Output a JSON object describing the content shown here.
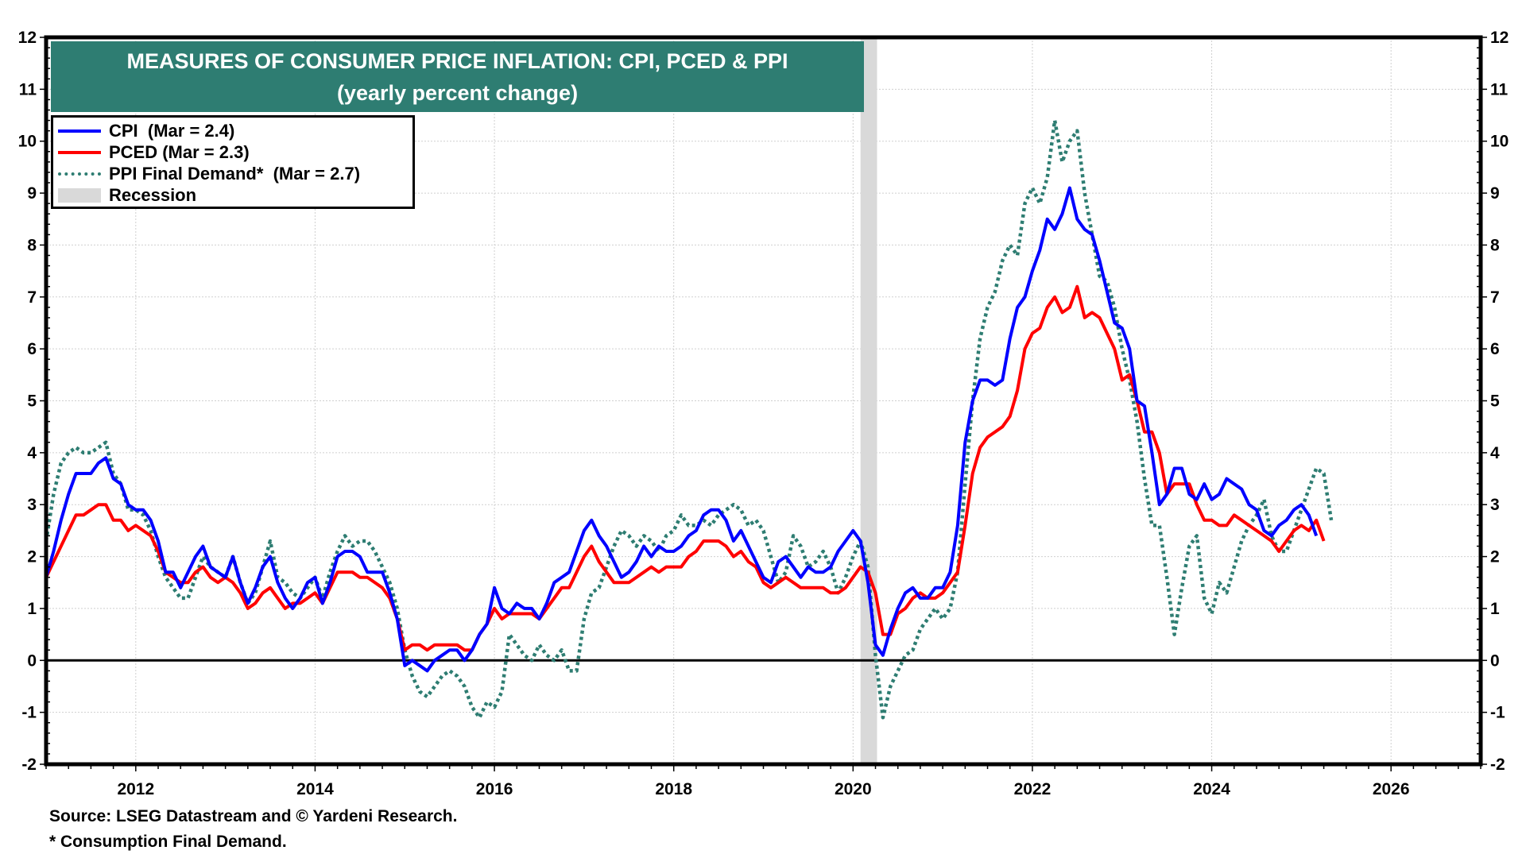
{
  "chart_data": {
    "type": "line",
    "title": "MEASURES OF CONSUMER PRICE INFLATION: CPI, PCED & PPI",
    "subtitle": "(yearly percent change)",
    "xlabel": "",
    "ylabel": "",
    "x_start": "2011-01",
    "x_frequency": "monthly",
    "xlim": [
      2011,
      2027
    ],
    "ylim": [
      -2,
      12
    ],
    "x_ticks": [
      "2012",
      "2014",
      "2016",
      "2018",
      "2020",
      "2022",
      "2024",
      "2026"
    ],
    "x_tick_values": [
      2012,
      2014,
      2016,
      2018,
      2020,
      2022,
      2024,
      2026
    ],
    "y_ticks": [
      "-2",
      "-1",
      "0",
      "1",
      "2",
      "3",
      "4",
      "5",
      "6",
      "7",
      "8",
      "9",
      "10",
      "11",
      "12"
    ],
    "y_tick_values": [
      -2,
      -1,
      0,
      1,
      2,
      3,
      4,
      5,
      6,
      7,
      8,
      9,
      10,
      11,
      12
    ],
    "grid": true,
    "legend_position": "top-left",
    "series": [
      {
        "name": "CPI",
        "legend": "CPI  (Mar = 2.4)",
        "color": "#0000ff",
        "style": "solid",
        "values": [
          1.6,
          2.1,
          2.7,
          3.2,
          3.6,
          3.6,
          3.6,
          3.8,
          3.9,
          3.5,
          3.4,
          3.0,
          2.9,
          2.9,
          2.7,
          2.3,
          1.7,
          1.7,
          1.4,
          1.7,
          2.0,
          2.2,
          1.8,
          1.7,
          1.6,
          2.0,
          1.5,
          1.1,
          1.4,
          1.8,
          2.0,
          1.5,
          1.2,
          1.0,
          1.2,
          1.5,
          1.6,
          1.1,
          1.5,
          2.0,
          2.1,
          2.1,
          2.0,
          1.7,
          1.7,
          1.7,
          1.3,
          0.8,
          -0.1,
          0.0,
          -0.1,
          -0.2,
          0.0,
          0.1,
          0.2,
          0.2,
          0.0,
          0.2,
          0.5,
          0.7,
          1.4,
          1.0,
          0.9,
          1.1,
          1.0,
          1.0,
          0.8,
          1.1,
          1.5,
          1.6,
          1.7,
          2.1,
          2.5,
          2.7,
          2.4,
          2.2,
          1.9,
          1.6,
          1.7,
          1.9,
          2.2,
          2.0,
          2.2,
          2.1,
          2.1,
          2.2,
          2.4,
          2.5,
          2.8,
          2.9,
          2.9,
          2.7,
          2.3,
          2.5,
          2.2,
          1.9,
          1.6,
          1.5,
          1.9,
          2.0,
          1.8,
          1.6,
          1.8,
          1.7,
          1.7,
          1.8,
          2.1,
          2.3,
          2.5,
          2.3,
          1.5,
          0.3,
          0.1,
          0.6,
          1.0,
          1.3,
          1.4,
          1.2,
          1.2,
          1.4,
          1.4,
          1.7,
          2.6,
          4.2,
          5.0,
          5.4,
          5.4,
          5.3,
          5.4,
          6.2,
          6.8,
          7.0,
          7.5,
          7.9,
          8.5,
          8.3,
          8.6,
          9.1,
          8.5,
          8.3,
          8.2,
          7.7,
          7.1,
          6.5,
          6.4,
          6.0,
          5.0,
          4.9,
          4.0,
          3.0,
          3.2,
          3.7,
          3.7,
          3.2,
          3.1,
          3.4,
          3.1,
          3.2,
          3.5,
          3.4,
          3.3,
          3.0,
          2.9,
          2.5,
          2.4,
          2.6,
          2.7,
          2.9,
          3.0,
          2.8,
          2.4
        ]
      },
      {
        "name": "PCED",
        "legend": "PCED (Mar = 2.3)",
        "color": "#ff0000",
        "style": "solid",
        "values": [
          1.6,
          1.9,
          2.2,
          2.5,
          2.8,
          2.8,
          2.9,
          3.0,
          3.0,
          2.7,
          2.7,
          2.5,
          2.6,
          2.5,
          2.4,
          2.1,
          1.7,
          1.6,
          1.5,
          1.5,
          1.7,
          1.8,
          1.6,
          1.5,
          1.6,
          1.5,
          1.3,
          1.0,
          1.1,
          1.3,
          1.4,
          1.2,
          1.0,
          1.1,
          1.1,
          1.2,
          1.3,
          1.1,
          1.4,
          1.7,
          1.7,
          1.7,
          1.6,
          1.6,
          1.5,
          1.4,
          1.2,
          0.8,
          0.2,
          0.3,
          0.3,
          0.2,
          0.3,
          0.3,
          0.3,
          0.3,
          0.2,
          0.2,
          0.5,
          0.7,
          1.0,
          0.8,
          0.9,
          0.9,
          0.9,
          0.9,
          0.8,
          1.0,
          1.2,
          1.4,
          1.4,
          1.7,
          2.0,
          2.2,
          1.9,
          1.7,
          1.5,
          1.5,
          1.5,
          1.6,
          1.7,
          1.8,
          1.7,
          1.8,
          1.8,
          1.8,
          2.0,
          2.1,
          2.3,
          2.3,
          2.3,
          2.2,
          2.0,
          2.1,
          1.9,
          1.8,
          1.5,
          1.4,
          1.5,
          1.6,
          1.5,
          1.4,
          1.4,
          1.4,
          1.4,
          1.3,
          1.3,
          1.4,
          1.6,
          1.8,
          1.7,
          1.3,
          0.5,
          0.5,
          0.9,
          1.0,
          1.2,
          1.3,
          1.2,
          1.2,
          1.3,
          1.5,
          1.7,
          2.6,
          3.6,
          4.1,
          4.3,
          4.4,
          4.5,
          4.7,
          5.2,
          6.0,
          6.3,
          6.4,
          6.8,
          7.0,
          6.7,
          6.8,
          7.2,
          6.6,
          6.7,
          6.6,
          6.3,
          6.0,
          5.4,
          5.5,
          5.0,
          4.4,
          4.4,
          4.0,
          3.2,
          3.4,
          3.4,
          3.4,
          3.0,
          2.7,
          2.7,
          2.6,
          2.6,
          2.8,
          2.7,
          2.6,
          2.5,
          2.4,
          2.3,
          2.1,
          2.3,
          2.5,
          2.6,
          2.5,
          2.7,
          2.3
        ]
      },
      {
        "name": "PPI Final Demand*",
        "legend": "PPI Final Demand*  (Mar = 2.7)",
        "color": "#2e7d72",
        "style": "dotted",
        "values": [
          2.3,
          3.2,
          3.8,
          4.0,
          4.1,
          4.0,
          4.0,
          4.1,
          4.2,
          3.6,
          3.4,
          2.9,
          2.9,
          2.8,
          2.5,
          2.0,
          1.6,
          1.4,
          1.2,
          1.2,
          1.6,
          2.0,
          1.8,
          1.7,
          1.6,
          2.0,
          1.5,
          1.1,
          1.3,
          1.8,
          2.3,
          1.6,
          1.5,
          1.3,
          1.2,
          1.4,
          1.6,
          1.2,
          1.7,
          2.1,
          2.4,
          2.2,
          2.3,
          2.3,
          2.1,
          1.8,
          1.5,
          1.0,
          0.2,
          -0.3,
          -0.6,
          -0.7,
          -0.5,
          -0.3,
          -0.2,
          -0.3,
          -0.5,
          -0.9,
          -1.1,
          -0.8,
          -0.9,
          -0.6,
          0.5,
          0.3,
          0.1,
          0.0,
          0.3,
          0.1,
          0.0,
          0.2,
          -0.2,
          -0.2,
          0.8,
          1.3,
          1.4,
          1.8,
          2.2,
          2.5,
          2.4,
          2.2,
          2.4,
          2.3,
          2.1,
          2.4,
          2.5,
          2.8,
          2.6,
          2.6,
          2.7,
          2.6,
          2.8,
          2.9,
          3.0,
          2.9,
          2.6,
          2.7,
          2.5,
          2.0,
          1.5,
          1.7,
          2.4,
          2.2,
          1.8,
          1.9,
          2.1,
          1.8,
          1.3,
          1.6,
          2.0,
          2.3,
          1.8,
          0.1,
          -1.1,
          -0.5,
          -0.2,
          0.1,
          0.2,
          0.6,
          0.8,
          1.0,
          0.8,
          1.0,
          1.7,
          3.4,
          5.0,
          6.2,
          6.8,
          7.1,
          7.7,
          8.0,
          7.8,
          8.8,
          9.1,
          8.8,
          9.3,
          10.4,
          9.6,
          10.0,
          10.2,
          9.0,
          8.2,
          7.4,
          7.3,
          6.8,
          6.0,
          5.4,
          4.6,
          3.5,
          2.6,
          2.6,
          1.6,
          0.5,
          1.4,
          2.2,
          2.4,
          1.2,
          0.9,
          1.5,
          1.3,
          1.8,
          2.3,
          2.6,
          2.8,
          3.1,
          2.4,
          2.1,
          2.1,
          2.5,
          2.9,
          3.3,
          3.7,
          3.6,
          2.7
        ]
      }
    ],
    "recession": {
      "label": "Recession",
      "start": "2020-02",
      "end": "2020-04",
      "color": "#d9d9d9"
    },
    "zero_line": true
  },
  "header": {
    "title_line1": "MEASURES OF CONSUMER PRICE INFLATION: CPI, PCED & PPI",
    "title_line2": "(yearly percent change)"
  },
  "legend": {
    "items": [
      {
        "label": "CPI  (Mar = 2.4)",
        "color": "#0000ff",
        "icon": "solid-line"
      },
      {
        "label": "PCED (Mar = 2.3)",
        "color": "#ff0000",
        "icon": "solid-line"
      },
      {
        "label": "PPI Final Demand*  (Mar = 2.7)",
        "color": "#2e7d72",
        "icon": "dotted-line"
      },
      {
        "label": "Recession",
        "color": "#d9d9d9",
        "icon": "shaded-box"
      }
    ]
  },
  "footer": {
    "source": "Source: LSEG Datastream and © Yardeni Research.",
    "note": "* Consumption Final Demand."
  }
}
